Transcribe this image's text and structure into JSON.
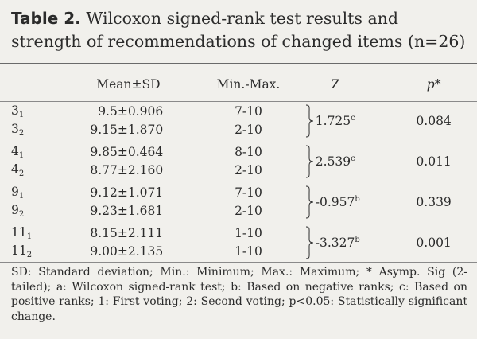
{
  "title": {
    "label": "Table 2.",
    "text": "Wilcoxon signed-rank test results and strength of recommendations of changed items (n=26)"
  },
  "table": {
    "headers": {
      "item": "",
      "mean": "Mean±SD",
      "range": "Min.-Max.",
      "z": "Z",
      "p": "p*"
    },
    "groups": [
      {
        "rows": [
          {
            "item": "3",
            "sub": "1",
            "mean": "9.5±0.906",
            "range": "7-10"
          },
          {
            "item": "3",
            "sub": "2",
            "mean": "9.15±1.870",
            "range": "2-10"
          }
        ],
        "z": "1.725",
        "z_sup": "c",
        "p": "0.084"
      },
      {
        "rows": [
          {
            "item": "4",
            "sub": "1",
            "mean": "9.85±0.464",
            "range": "8-10"
          },
          {
            "item": "4",
            "sub": "2",
            "mean": "8.77±2.160",
            "range": "2-10"
          }
        ],
        "z": "2.539",
        "z_sup": "c",
        "p": "0.011"
      },
      {
        "rows": [
          {
            "item": "9",
            "sub": "1",
            "mean": "9.12±1.071",
            "range": "7-10"
          },
          {
            "item": "9",
            "sub": "2",
            "mean": "9.23±1.681",
            "range": "2-10"
          }
        ],
        "z": "-0.957",
        "z_sup": "b",
        "p": "0.339"
      },
      {
        "rows": [
          {
            "item": "11",
            "sub": "1",
            "mean": "8.15±2.111",
            "range": "1-10"
          },
          {
            "item": "11",
            "sub": "2",
            "mean": "9.00±2.135",
            "range": "1-10"
          }
        ],
        "z": "-3.327",
        "z_sup": "b",
        "p": "0.001"
      }
    ]
  },
  "footnote": "SD: Standard deviation; Min.: Minimum; Max.: Maximum; * Asymp. Sig (2-tailed); a: Wilcoxon signed-rank test; b: Based on negative ranks; c: Based on positive ranks; 1: First voting; 2: Second voting; p<0.05: Statistically significant change.",
  "colors": {
    "background": "#f1f0ec",
    "text": "#2b2b2b",
    "rule": "#6a6a6a"
  }
}
